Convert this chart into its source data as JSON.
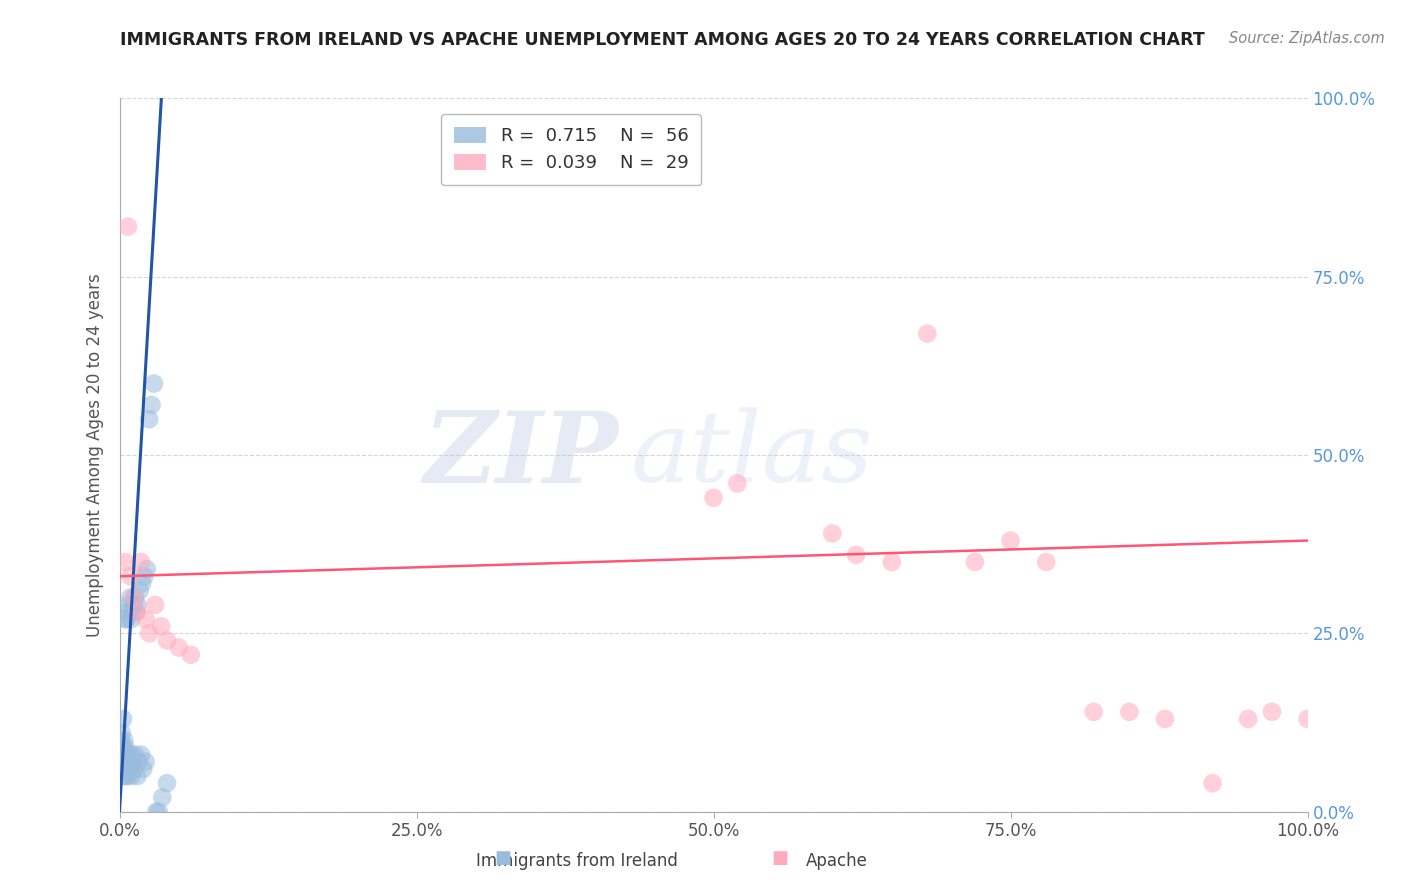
{
  "title": "IMMIGRANTS FROM IRELAND VS APACHE UNEMPLOYMENT AMONG AGES 20 TO 24 YEARS CORRELATION CHART",
  "source": "Source: ZipAtlas.com",
  "ylabel": "Unemployment Among Ages 20 to 24 years",
  "legend_label1": "Immigrants from Ireland",
  "legend_label2": "Apache",
  "R1": "0.715",
  "N1": "56",
  "R2": "0.039",
  "N2": "29",
  "color_blue": "#99BBDD",
  "color_pink": "#FFAABC",
  "color_blue_line": "#2255AA",
  "color_pink_line": "#FF5577",
  "watermark_zip": "ZIP",
  "watermark_atlas": "atlas",
  "xlim": [
    0,
    1.0
  ],
  "ylim": [
    0,
    1.0
  ],
  "xtick_vals": [
    0.0,
    0.25,
    0.5,
    0.75,
    1.0
  ],
  "xtick_labels": [
    "0.0%",
    "25.0%",
    "50.0%",
    "75.0%",
    "100.0%"
  ],
  "ytick_labels": [
    "",
    "25.0%",
    "50.0%",
    "75.0%",
    "100.0%"
  ],
  "blue_points_x": [
    0.001,
    0.001,
    0.001,
    0.002,
    0.002,
    0.002,
    0.002,
    0.003,
    0.003,
    0.003,
    0.003,
    0.004,
    0.004,
    0.004,
    0.005,
    0.005,
    0.005,
    0.005,
    0.006,
    0.006,
    0.006,
    0.007,
    0.007,
    0.007,
    0.008,
    0.008,
    0.008,
    0.009,
    0.009,
    0.01,
    0.01,
    0.01,
    0.011,
    0.011,
    0.012,
    0.012,
    0.013,
    0.013,
    0.014,
    0.015,
    0.015,
    0.016,
    0.017,
    0.018,
    0.019,
    0.02,
    0.021,
    0.022,
    0.023,
    0.025,
    0.027,
    0.029,
    0.031,
    0.033,
    0.036,
    0.04
  ],
  "blue_points_y": [
    0.06,
    0.08,
    0.1,
    0.06,
    0.08,
    0.09,
    0.11,
    0.05,
    0.07,
    0.09,
    0.13,
    0.06,
    0.08,
    0.1,
    0.05,
    0.07,
    0.09,
    0.27,
    0.06,
    0.08,
    0.27,
    0.05,
    0.07,
    0.28,
    0.06,
    0.08,
    0.29,
    0.07,
    0.3,
    0.05,
    0.08,
    0.27,
    0.07,
    0.28,
    0.06,
    0.29,
    0.08,
    0.3,
    0.28,
    0.05,
    0.29,
    0.07,
    0.31,
    0.08,
    0.32,
    0.06,
    0.33,
    0.07,
    0.34,
    0.55,
    0.57,
    0.6,
    0.0,
    0.0,
    0.02,
    0.04
  ],
  "pink_points_x": [
    0.005,
    0.007,
    0.009,
    0.012,
    0.015,
    0.018,
    0.022,
    0.025,
    0.03,
    0.035,
    0.04,
    0.05,
    0.06,
    0.5,
    0.52,
    0.6,
    0.62,
    0.65,
    0.68,
    0.72,
    0.75,
    0.78,
    0.82,
    0.85,
    0.88,
    0.92,
    0.95,
    0.97,
    1.0
  ],
  "pink_points_y": [
    0.35,
    0.82,
    0.33,
    0.3,
    0.28,
    0.35,
    0.27,
    0.25,
    0.29,
    0.26,
    0.24,
    0.23,
    0.22,
    0.44,
    0.46,
    0.39,
    0.36,
    0.35,
    0.67,
    0.35,
    0.38,
    0.35,
    0.14,
    0.14,
    0.13,
    0.04,
    0.13,
    0.14,
    0.13
  ],
  "blue_line_x": [
    0.0,
    0.037
  ],
  "blue_line_y": [
    0.0,
    1.05
  ],
  "pink_line_x": [
    0.0,
    1.0
  ],
  "pink_line_y": [
    0.33,
    0.38
  ],
  "grid_color": "#CCCCCC",
  "background_color": "#FFFFFF"
}
